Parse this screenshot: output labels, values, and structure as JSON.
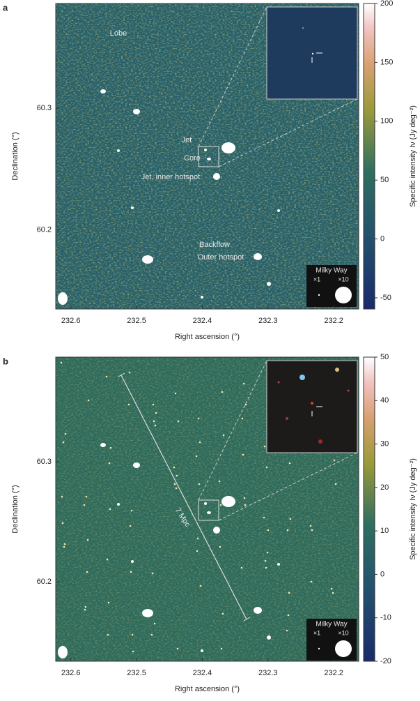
{
  "chart_data": [
    {
      "type": "image",
      "panel_label": "a",
      "xlabel": "Right ascension (°)",
      "ylabel": "Declination (°)",
      "xlim": [
        232.623,
        232.162
      ],
      "xticks": [
        232.6,
        232.5,
        232.4,
        232.3,
        232.2
      ],
      "ylim": [
        60.135,
        60.386
      ],
      "yticks": [
        60.2,
        60.3
      ],
      "colorbar_label": "Specific intensity Iν (Jy deg⁻²)",
      "clim": [
        -59.5,
        200
      ],
      "cticks": [
        -50,
        0,
        50,
        100,
        150,
        200
      ],
      "annotations": [
        "Lobe",
        "Jet",
        "Core",
        "Jet, inner hotspot",
        "Backflow",
        "Outer hotspot"
      ],
      "legend": {
        "title": "Milky Way",
        "items": [
          "×1",
          "×10"
        ]
      },
      "inset": "radio"
    },
    {
      "type": "image",
      "panel_label": "b",
      "xlabel": "Right ascension (°)",
      "ylabel": "Declination (°)",
      "xlim": [
        232.623,
        232.162
      ],
      "xticks": [
        232.6,
        232.5,
        232.4,
        232.3,
        232.2
      ],
      "ylim": [
        60.134,
        60.387
      ],
      "yticks": [
        60.2,
        60.3
      ],
      "colorbar_label": "Specific intensity Iν (Jy deg⁻²)",
      "clim": [
        -20,
        50
      ],
      "cticks": [
        -20,
        -10,
        0,
        10,
        20,
        30,
        40,
        50
      ],
      "annotations": [
        "7 Mpc"
      ],
      "legend": {
        "title": "Milky Way",
        "items": [
          "×1",
          "×10"
        ]
      },
      "inset": "optical"
    }
  ]
}
